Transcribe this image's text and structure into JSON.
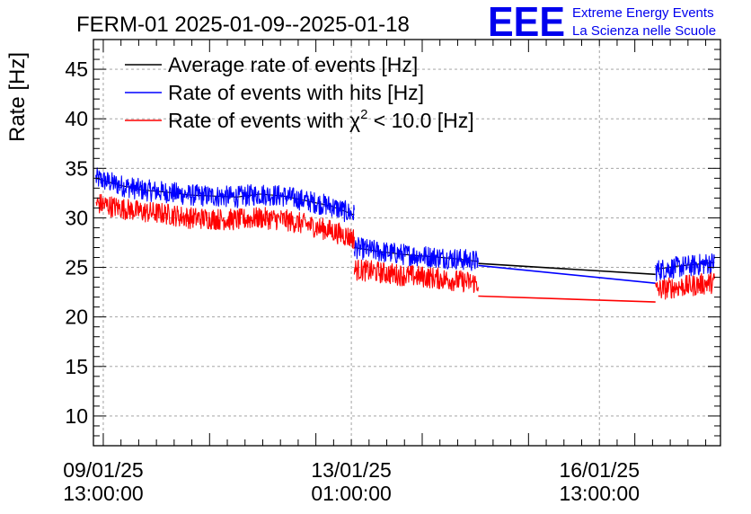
{
  "chart_data": {
    "type": "line",
    "title": "FERM-01 2025-01-09--2025-01-18",
    "ylabel": "Rate [Hz]",
    "xlabel": "",
    "ylim": [
      7,
      48
    ],
    "yticks": [
      10,
      15,
      20,
      25,
      30,
      35,
      40,
      45
    ],
    "xlim": [
      "2025-01-09 09:40:00",
      "2025-01-18 06:00:00"
    ],
    "xticks": [
      {
        "datetime": "2025-01-09 13:00:00",
        "line1": "09/01/25",
        "line2": "13:00:00"
      },
      {
        "datetime": "2025-01-13 01:00:00",
        "line1": "13/01/25",
        "line2": "01:00:00"
      },
      {
        "datetime": "2025-01-16 13:00:00",
        "line1": "16/01/25",
        "line2": "13:00:00"
      }
    ],
    "grid": true,
    "legend_position": "top-left",
    "series": [
      {
        "name": "Average rate of events [Hz]",
        "color": "#000000",
        "segments": [
          {
            "start": "2025-01-09 10:30:00",
            "end": "2025-01-13 02:00:00",
            "values": [
              34.0,
              33.3,
              32.8,
              32.6,
              32.3,
              32.2,
              32.1,
              32.4,
              32.2,
              31.7,
              31.2,
              30.3
            ]
          },
          {
            "start": "2025-01-13 02:00:00",
            "end": "2025-01-14 20:00:00",
            "values": [
              27.0,
              26.6,
              26.3,
              26.1,
              25.9,
              25.6
            ]
          },
          {
            "start": "2025-01-14 20:00:00",
            "end": "2025-01-17 08:00:00",
            "values": [
              25.4,
              24.3
            ]
          },
          {
            "start": "2025-01-17 08:00:00",
            "end": "2025-01-18 04:00:00",
            "values": [
              24.8,
              25.1,
              25.3,
              25.5
            ]
          }
        ]
      },
      {
        "name": "Rate of events with hits [Hz]",
        "color": "#0000ff",
        "segments": [
          {
            "start": "2025-01-09 10:30:00",
            "end": "2025-01-13 02:00:00",
            "values": [
              34.0,
              33.3,
              32.8,
              32.6,
              32.3,
              32.2,
              32.1,
              32.4,
              32.2,
              31.7,
              31.2,
              30.3
            ]
          },
          {
            "start": "2025-01-13 02:00:00",
            "end": "2025-01-14 20:00:00",
            "values": [
              27.0,
              26.6,
              26.3,
              26.1,
              25.9,
              25.6
            ]
          },
          {
            "start": "2025-01-14 20:00:00",
            "end": "2025-01-17 08:00:00",
            "values": [
              25.2,
              23.4
            ]
          },
          {
            "start": "2025-01-17 08:00:00",
            "end": "2025-01-18 04:00:00",
            "values": [
              24.7,
              25.0,
              25.2,
              25.5
            ]
          }
        ]
      },
      {
        "name": "Rate of events with χ² < 10.0 [Hz]",
        "color": "#ff0000",
        "segments": [
          {
            "start": "2025-01-09 10:30:00",
            "end": "2025-01-13 02:00:00",
            "values": [
              31.5,
              31.0,
              30.6,
              30.4,
              30.0,
              29.9,
              29.8,
              30.0,
              29.8,
              29.3,
              28.7,
              27.9
            ]
          },
          {
            "start": "2025-01-13 02:00:00",
            "end": "2025-01-14 20:00:00",
            "values": [
              24.8,
              24.5,
              24.2,
              24.0,
              23.7,
              23.4
            ]
          },
          {
            "start": "2025-01-14 20:00:00",
            "end": "2025-01-17 08:00:00",
            "values": [
              22.1,
              21.5
            ]
          },
          {
            "start": "2025-01-17 08:00:00",
            "end": "2025-01-18 04:00:00",
            "values": [
              22.7,
              23.0,
              23.2,
              23.5
            ]
          }
        ]
      }
    ]
  },
  "legend": {
    "entries": [
      {
        "text": "Average rate of events [Hz]",
        "color": "#000000"
      },
      {
        "text": "Rate of events with hits [Hz]",
        "color": "#0000ff"
      },
      {
        "pre": "Rate of events with ",
        "symbol": "χ",
        "sup": "2",
        "post": " < 10.0 [Hz]",
        "color": "#ff0000"
      }
    ]
  },
  "logo": {
    "mark": "EEE",
    "line1": "Extreme Energy Events",
    "line2": "La Scienza nelle Scuole",
    "color": "#0000ee"
  }
}
